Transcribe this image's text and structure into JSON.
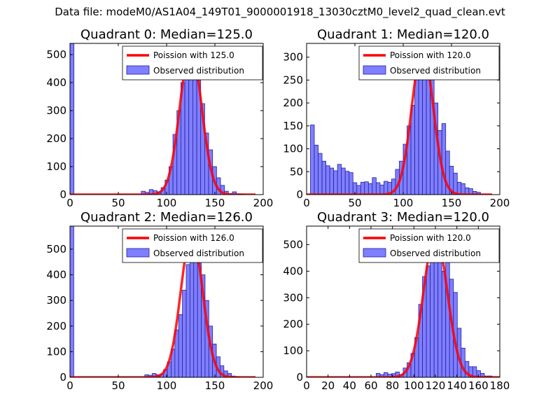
{
  "suptitle": "Data file: modeM0/AS1A04_149T01_9000001918_13030cztM0_level2_quad_clean.evt",
  "colors": {
    "hist_fill": "#7f7fff",
    "hist_edge": "#2020a0",
    "poisson": "#ff0000"
  },
  "chart_data": [
    {
      "type": "bar",
      "title": "Quadrant 0: Median=125.0",
      "xlim": [
        0,
        200
      ],
      "ylim": [
        0,
        540
      ],
      "xticks": [
        "0",
        "50",
        "100",
        "150",
        "200"
      ],
      "yticks": [
        "0",
        "100",
        "200",
        "300",
        "400",
        "500"
      ],
      "bin_width": 4.1,
      "legend": [
        "Poission with 125.0",
        "Observed distribution"
      ],
      "first_bin_value": 540,
      "bins_x": [
        73.8,
        77.9,
        82.0,
        86.1,
        90.2,
        94.3,
        98.4,
        102.5,
        106.6,
        110.7,
        114.8,
        118.9,
        123.0,
        127.1,
        131.2,
        135.3,
        139.4,
        143.5,
        147.6,
        151.7,
        155.8,
        159.9,
        164.0,
        168.1,
        172.2,
        176.3
      ],
      "bins_y": [
        12,
        8,
        18,
        14,
        10,
        25,
        52,
        100,
        215,
        300,
        400,
        490,
        525,
        495,
        425,
        325,
        220,
        160,
        100,
        60,
        33,
        12,
        4,
        10,
        3,
        2
      ],
      "poisson_mu": 125.0,
      "poisson_peak": 525
    },
    {
      "type": "bar",
      "title": "Quadrant 1: Median=120.0",
      "xlim": [
        0,
        200
      ],
      "ylim": [
        0,
        330
      ],
      "xticks": [
        "0",
        "50",
        "100",
        "150",
        "200"
      ],
      "yticks": [
        "0",
        "50",
        "100",
        "150",
        "200",
        "250",
        "300"
      ],
      "bin_width": 4.0,
      "legend": [
        "Poission with 120.0",
        "Observed distribution"
      ],
      "first_bin_value": 0,
      "bins_x": [
        4,
        8,
        12,
        16,
        20,
        24,
        28,
        32,
        36,
        40,
        44,
        48,
        52,
        56,
        60,
        64,
        68,
        72,
        76,
        80,
        84,
        88,
        92,
        96,
        100,
        104,
        108,
        112,
        116,
        120,
        124,
        128,
        132,
        136,
        140,
        144,
        148,
        152,
        156,
        160,
        164,
        168,
        172,
        176
      ],
      "bins_y": [
        152,
        108,
        90,
        73,
        63,
        58,
        52,
        66,
        58,
        51,
        48,
        26,
        20,
        27,
        28,
        24,
        37,
        26,
        21,
        29,
        27,
        34,
        55,
        73,
        110,
        150,
        195,
        280,
        320,
        300,
        265,
        300,
        200,
        140,
        155,
        95,
        62,
        47,
        27,
        24,
        15,
        13,
        7,
        5
      ],
      "poisson_mu": 120.0,
      "poisson_peak": 320
    },
    {
      "type": "bar",
      "title": "Quadrant 2: Median=126.0",
      "xlim": [
        0,
        200
      ],
      "ylim": [
        0,
        590
      ],
      "xticks": [
        "0",
        "50",
        "100",
        "150",
        "200"
      ],
      "yticks": [
        "0",
        "100",
        "200",
        "300",
        "400",
        "500"
      ],
      "bin_width": 3.9,
      "legend": [
        "Poission with 126.0",
        "Observed distribution"
      ],
      "first_bin_value": 590,
      "bins_x": [
        77.4,
        81.3,
        85.2,
        89.1,
        93.0,
        96.9,
        100.8,
        104.7,
        108.6,
        112.5,
        116.4,
        120.3,
        124.2,
        128.1,
        132.0,
        135.9,
        139.8,
        143.7,
        147.6,
        151.5,
        155.4,
        159.3,
        163.2,
        167.1,
        171.0
      ],
      "bins_y": [
        10,
        8,
        15,
        10,
        12,
        30,
        60,
        110,
        185,
        245,
        340,
        440,
        510,
        560,
        500,
        400,
        300,
        200,
        130,
        80,
        45,
        25,
        15,
        5,
        3
      ],
      "poisson_mu": 126.0,
      "poisson_peak": 560
    },
    {
      "type": "bar",
      "title": "Quadrant 3: Median=120.0",
      "xlim": [
        0,
        180
      ],
      "ylim": [
        0,
        570
      ],
      "xticks": [
        "0",
        "20",
        "40",
        "60",
        "80",
        "100",
        "120",
        "140",
        "160",
        "180"
      ],
      "yticks": [
        "0",
        "100",
        "200",
        "300",
        "400",
        "500"
      ],
      "bin_width": 3.6,
      "legend": [
        "Poission with 120.0",
        "Observed distribution"
      ],
      "first_bin_value": 0,
      "bins_x": [
        64.8,
        68.4,
        72.0,
        75.6,
        79.2,
        82.8,
        86.4,
        90.0,
        93.6,
        97.2,
        100.8,
        104.4,
        108.0,
        111.6,
        115.2,
        118.8,
        122.4,
        126.0,
        129.6,
        133.2,
        136.8,
        140.4,
        144.0,
        147.6,
        151.2,
        154.8,
        158.4,
        162.0,
        165.6,
        169.2
      ],
      "bins_y": [
        15,
        10,
        18,
        12,
        14,
        20,
        10,
        35,
        55,
        90,
        150,
        275,
        380,
        420,
        510,
        540,
        440,
        400,
        440,
        370,
        320,
        185,
        110,
        60,
        40,
        40,
        25,
        15,
        5,
        5
      ],
      "poisson_mu": 120.0,
      "poisson_peak": 540
    }
  ]
}
